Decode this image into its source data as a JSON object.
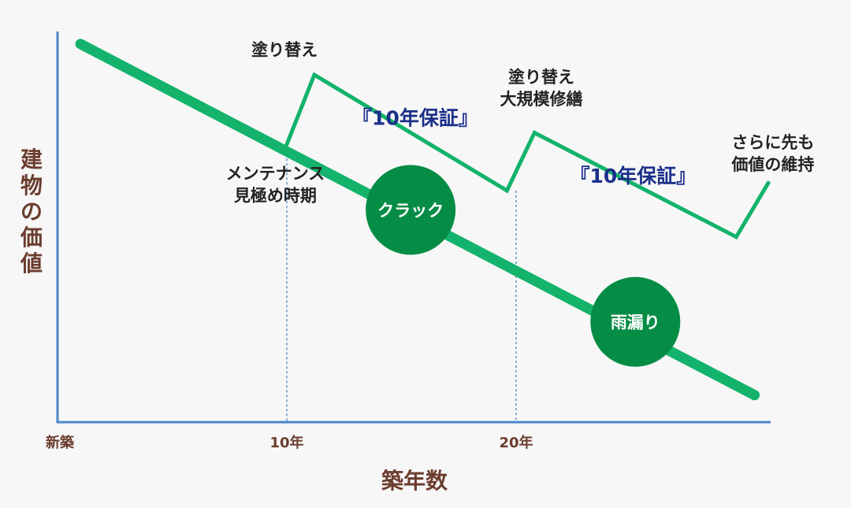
{
  "colors": {
    "background": "#f7f7f7",
    "axis": "#4a86c7",
    "guide": "#4a86c7",
    "line_green": "#13b36b",
    "circle_green": "#058c45",
    "axis_text": "#6b3d2e",
    "note_text": "#222222",
    "guarantee_text": "#1b2f8a",
    "circle_text": "#ffffff"
  },
  "chart_data": {
    "type": "line",
    "title": "",
    "xlabel": "築年数",
    "ylabel": "建物の価値",
    "xlim": [
      0,
      30
    ],
    "ylim": [
      0,
      100
    ],
    "x_ticks": [
      {
        "x": 0,
        "label": "新築"
      },
      {
        "x": 10,
        "label": "10年"
      },
      {
        "x": 20,
        "label": "20年"
      }
    ],
    "series": [
      {
        "name": "",
        "style": "thick",
        "x": [
          1,
          30.4
        ],
        "y": [
          98,
          7
        ]
      },
      {
        "name": "",
        "style": "thin",
        "x": [
          10,
          11.2,
          19.6,
          20.8,
          29.6,
          31.0
        ],
        "y": [
          72,
          90,
          60,
          75,
          48,
          62
        ]
      }
    ],
    "guides": [
      {
        "x": 10,
        "from_y": 72
      },
      {
        "x": 20,
        "from_y": 60
      }
    ],
    "annotations": [
      {
        "text": [
          "塗り替え"
        ],
        "kind": "note",
        "x": 9.9,
        "y": 95
      },
      {
        "text": [
          "塗り替え",
          "大規模修繕"
        ],
        "kind": "note",
        "x": 21.1,
        "y": 88
      },
      {
        "text": [
          "さらに先も",
          "価値の維持"
        ],
        "kind": "note",
        "x": 31.2,
        "y": 71
      },
      {
        "text": [
          "メンテナンス",
          "見極め時期"
        ],
        "kind": "note",
        "x": 9.5,
        "y": 63
      },
      {
        "text": [
          "『10年保証』"
        ],
        "kind": "guarantee",
        "x": 15.6,
        "y": 77
      },
      {
        "text": [
          "『10年保証』"
        ],
        "kind": "guarantee",
        "x": 25.1,
        "y": 62
      }
    ],
    "markers": [
      {
        "label": "クラック",
        "x": 15.4,
        "y": 55
      },
      {
        "label": "雨漏り",
        "x": 25.2,
        "y": 26
      }
    ]
  }
}
